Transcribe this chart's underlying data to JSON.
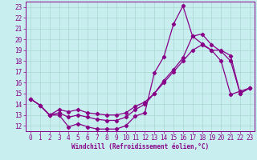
{
  "xlabel": "Windchill (Refroidissement éolien,°C)",
  "bg_color": "#c8eef0",
  "grid_color": "#a8d8cc",
  "line_color": "#880088",
  "xlim": [
    -0.5,
    23.5
  ],
  "ylim": [
    11.5,
    23.5
  ],
  "xticks": [
    0,
    1,
    2,
    3,
    4,
    5,
    6,
    7,
    8,
    9,
    10,
    11,
    12,
    13,
    14,
    15,
    16,
    17,
    18,
    19,
    20,
    21,
    22,
    23
  ],
  "yticks": [
    12,
    13,
    14,
    15,
    16,
    17,
    18,
    19,
    20,
    21,
    22,
    23
  ],
  "line1_x": [
    0,
    1,
    2,
    3,
    4,
    5,
    6,
    7,
    8,
    9,
    10,
    11,
    12,
    13,
    14,
    15,
    16,
    17,
    18,
    19,
    20,
    21,
    22,
    23
  ],
  "line1_y": [
    14.5,
    13.9,
    13.0,
    13.0,
    11.9,
    12.2,
    11.9,
    11.7,
    11.7,
    11.7,
    12.0,
    12.9,
    13.2,
    16.9,
    18.4,
    21.4,
    23.1,
    20.3,
    19.6,
    19.0,
    18.0,
    14.9,
    15.2,
    15.5
  ],
  "line2_x": [
    0,
    1,
    2,
    3,
    4,
    5,
    6,
    7,
    8,
    9,
    10,
    11,
    12,
    13,
    14,
    15,
    16,
    17,
    18,
    19,
    20,
    21,
    22,
    23
  ],
  "line2_y": [
    14.5,
    13.9,
    13.0,
    13.2,
    12.8,
    13.0,
    12.8,
    12.6,
    12.5,
    12.5,
    12.8,
    13.5,
    14.0,
    15.0,
    16.2,
    17.2,
    18.3,
    20.3,
    20.5,
    19.5,
    18.9,
    18.0,
    15.0,
    15.5
  ],
  "line3_x": [
    0,
    1,
    2,
    3,
    4,
    5,
    6,
    7,
    8,
    9,
    10,
    11,
    12,
    13,
    14,
    15,
    16,
    17,
    18,
    19,
    20,
    21,
    22,
    23
  ],
  "line3_y": [
    14.5,
    13.9,
    13.0,
    13.5,
    13.3,
    13.5,
    13.2,
    13.1,
    13.0,
    13.0,
    13.2,
    13.8,
    14.2,
    15.0,
    16.0,
    17.0,
    18.0,
    19.0,
    19.5,
    19.0,
    19.0,
    18.5,
    15.0,
    15.5
  ],
  "spine_color": "#880088",
  "tick_fontsize": 5.5,
  "xlabel_fontsize": 5.5
}
